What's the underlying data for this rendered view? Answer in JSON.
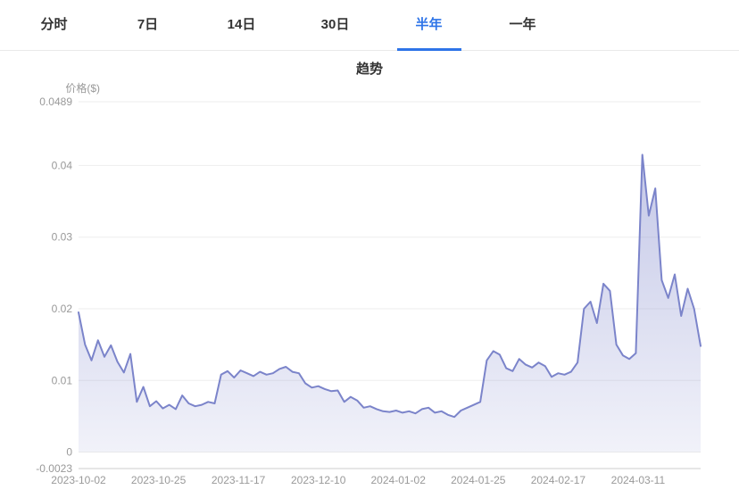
{
  "tabs": {
    "items": [
      {
        "label": "分时",
        "active": false
      },
      {
        "label": "7日",
        "active": false
      },
      {
        "label": "14日",
        "active": false
      },
      {
        "label": "30日",
        "active": false
      },
      {
        "label": "半年",
        "active": true
      },
      {
        "label": "一年",
        "active": false
      }
    ]
  },
  "colors": {
    "accent": "#2e74e8",
    "line": "#7b84ca",
    "fill": "#8a91d0",
    "grid": "#ededed",
    "axis": "#cccccc",
    "tick_text": "#999999"
  },
  "chart_data": {
    "type": "area",
    "title": "趋势",
    "ylabel": "价格($)",
    "series_name": "价格",
    "legend": "none",
    "grid": true,
    "x_labels": [
      "2023-10-02",
      "2023-10-25",
      "2023-11-17",
      "2023-12-10",
      "2024-01-02",
      "2024-01-25",
      "2024-02-17",
      "2024-03-11"
    ],
    "x_tick_days": [
      0,
      23,
      46,
      69,
      92,
      115,
      138,
      161
    ],
    "total_days": 179,
    "ylim": [
      -0.0023,
      0.0489
    ],
    "y_ticks": [
      0.0489,
      0.04,
      0.03,
      0.02,
      0.01,
      0,
      -0.0023
    ],
    "values": [
      0.0195,
      0.015,
      0.0128,
      0.0156,
      0.0133,
      0.0149,
      0.0126,
      0.0111,
      0.0137,
      0.007,
      0.0091,
      0.0064,
      0.0071,
      0.0061,
      0.0066,
      0.006,
      0.0079,
      0.0068,
      0.0064,
      0.0066,
      0.007,
      0.0068,
      0.0108,
      0.0113,
      0.0104,
      0.0114,
      0.011,
      0.0106,
      0.0112,
      0.0108,
      0.011,
      0.0116,
      0.0119,
      0.0112,
      0.011,
      0.0096,
      0.009,
      0.0092,
      0.0088,
      0.0085,
      0.0086,
      0.007,
      0.0077,
      0.0072,
      0.0062,
      0.0064,
      0.006,
      0.0057,
      0.0056,
      0.0058,
      0.0055,
      0.0057,
      0.0054,
      0.006,
      0.0062,
      0.0055,
      0.0057,
      0.0052,
      0.0049,
      0.0058,
      0.0062,
      0.0066,
      0.007,
      0.0128,
      0.0141,
      0.0136,
      0.0117,
      0.0113,
      0.013,
      0.0122,
      0.0118,
      0.0125,
      0.012,
      0.0105,
      0.011,
      0.0108,
      0.0112,
      0.0125,
      0.02,
      0.021,
      0.018,
      0.0235,
      0.0225,
      0.015,
      0.0135,
      0.013,
      0.0138,
      0.0415,
      0.033,
      0.0368,
      0.024,
      0.0215,
      0.0248,
      0.019,
      0.0228,
      0.02,
      0.0148
    ]
  }
}
